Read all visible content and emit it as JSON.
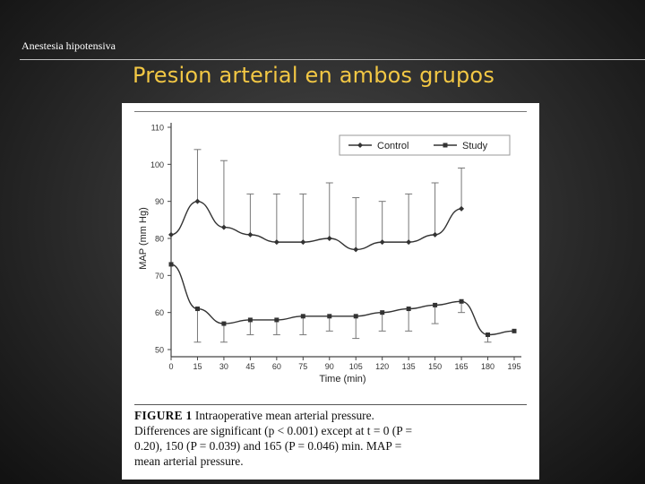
{
  "slide": {
    "header_label": "Anestesia hipotensiva",
    "title": "Presion arterial en ambos grupos"
  },
  "colors": {
    "background": "#2a2a2a",
    "title": "#f2c744",
    "header_text": "#ffffff",
    "series": "#333333"
  },
  "figure": {
    "caption_label": "FIGURE 1",
    "caption_line1_rest": "Intraoperative mean arterial pressure.",
    "caption_line2": "Differences are significant (p < 0.001) except at t = 0 (P =",
    "caption_line3": "0.20), 150 (P = 0.039) and 165 (P = 0.046) min. MAP =",
    "caption_line4": "mean arterial pressure."
  },
  "chart_data": {
    "type": "line",
    "title": "",
    "xlabel": "Time (min)",
    "ylabel": "MAP (mm Hg)",
    "x": [
      0,
      15,
      30,
      45,
      60,
      75,
      90,
      105,
      120,
      135,
      150,
      165,
      180,
      195
    ],
    "x_ticks": [
      "0",
      "15",
      "30",
      "45",
      "60",
      "75",
      "90",
      "105",
      "120",
      "135",
      "150",
      "165",
      "180",
      "195"
    ],
    "y_ticks": [
      "50",
      "60",
      "70",
      "80",
      "90",
      "100",
      "110"
    ],
    "xlim": [
      0,
      195
    ],
    "ylim": [
      50,
      110
    ],
    "grid": false,
    "legend_position": "top-right",
    "series": [
      {
        "name": "Control",
        "marker": "diamond",
        "values": [
          81,
          90,
          83,
          81,
          79,
          79,
          80,
          77,
          79,
          79,
          81,
          88,
          null,
          null
        ],
        "error_upper": [
          null,
          104,
          101,
          92,
          92,
          92,
          95,
          91,
          90,
          92,
          95,
          99,
          null,
          null
        ]
      },
      {
        "name": "Study",
        "marker": "square",
        "values": [
          73,
          61,
          57,
          58,
          58,
          59,
          59,
          59,
          60,
          61,
          62,
          63,
          54,
          55
        ],
        "error_lower": [
          null,
          52,
          52,
          54,
          54,
          54,
          55,
          53,
          55,
          55,
          57,
          60,
          52,
          null
        ]
      }
    ]
  }
}
